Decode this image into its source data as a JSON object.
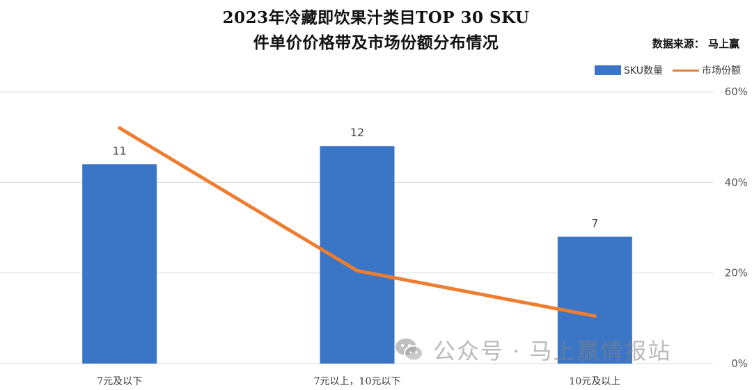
{
  "header": {
    "title_line1": "2023年冷藏即饮果汁类目TOP 30 SKU",
    "title_line2": "件单价价格带及市场份额分布情况",
    "source": "数据来源：  马上赢"
  },
  "legend": {
    "bar_label": "SKU数量",
    "line_label": "市场份额"
  },
  "watermark": {
    "text": "公众号 · 马上赢情报站"
  },
  "colors": {
    "bar": "#3a75c6",
    "line": "#ed7d31",
    "grid": "#d9d9d9"
  },
  "chart_data": {
    "type": "bar",
    "categories": [
      "7元及以下",
      "7元以上，10元以下",
      "10元及以上"
    ],
    "series": [
      {
        "name": "SKU数量",
        "type": "bar",
        "axis": "left",
        "values": [
          11,
          12,
          7
        ]
      },
      {
        "name": "市场份额",
        "type": "line",
        "axis": "right",
        "values": [
          52,
          20.5,
          10.5
        ]
      }
    ],
    "y_left": {
      "range": [
        0,
        15
      ]
    },
    "y_right": {
      "range": [
        0,
        60
      ],
      "ticks": [
        "0%",
        "20%",
        "40%",
        "60%"
      ]
    },
    "data_labels": [
      "11",
      "12",
      "7"
    ],
    "grid": true,
    "legend_position": "top-right"
  }
}
